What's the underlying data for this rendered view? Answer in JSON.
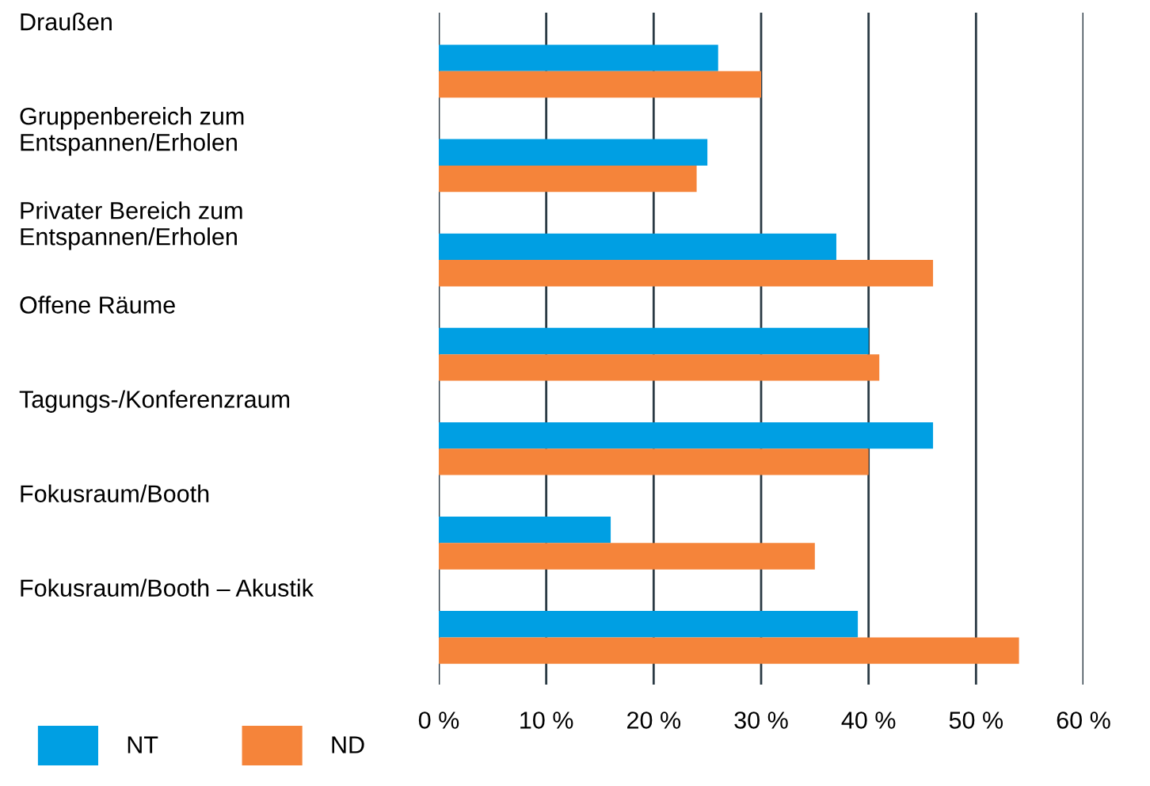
{
  "chart_data": {
    "type": "bar",
    "orientation": "horizontal",
    "categories": [
      "Draußen",
      "Gruppenbereich zum\nEntspannen/Erholen",
      "Privater Bereich zum\nEntspannen/Erholen",
      "Offene Räume",
      "Tagungs-/Konferenzraum",
      "Fokusraum/Booth",
      "Fokusraum/Booth – Akustik"
    ],
    "series": [
      {
        "name": "NT",
        "color": "#009fe3",
        "values": [
          26,
          25,
          37,
          40,
          46,
          16,
          39
        ]
      },
      {
        "name": "ND",
        "color": "#f5843a",
        "values": [
          30,
          24,
          46,
          41,
          40,
          35,
          54
        ]
      }
    ],
    "xlim": [
      0,
      60
    ],
    "xticks": [
      {
        "value": 0,
        "label": "0 %"
      },
      {
        "value": 10,
        "label": "10 %"
      },
      {
        "value": 20,
        "label": "20 %"
      },
      {
        "value": 30,
        "label": "30 %"
      },
      {
        "value": 40,
        "label": "40 %"
      },
      {
        "value": 50,
        "label": "50 %"
      },
      {
        "value": 60,
        "label": "60 %"
      }
    ],
    "grid": "x",
    "legend": "bottom left"
  }
}
